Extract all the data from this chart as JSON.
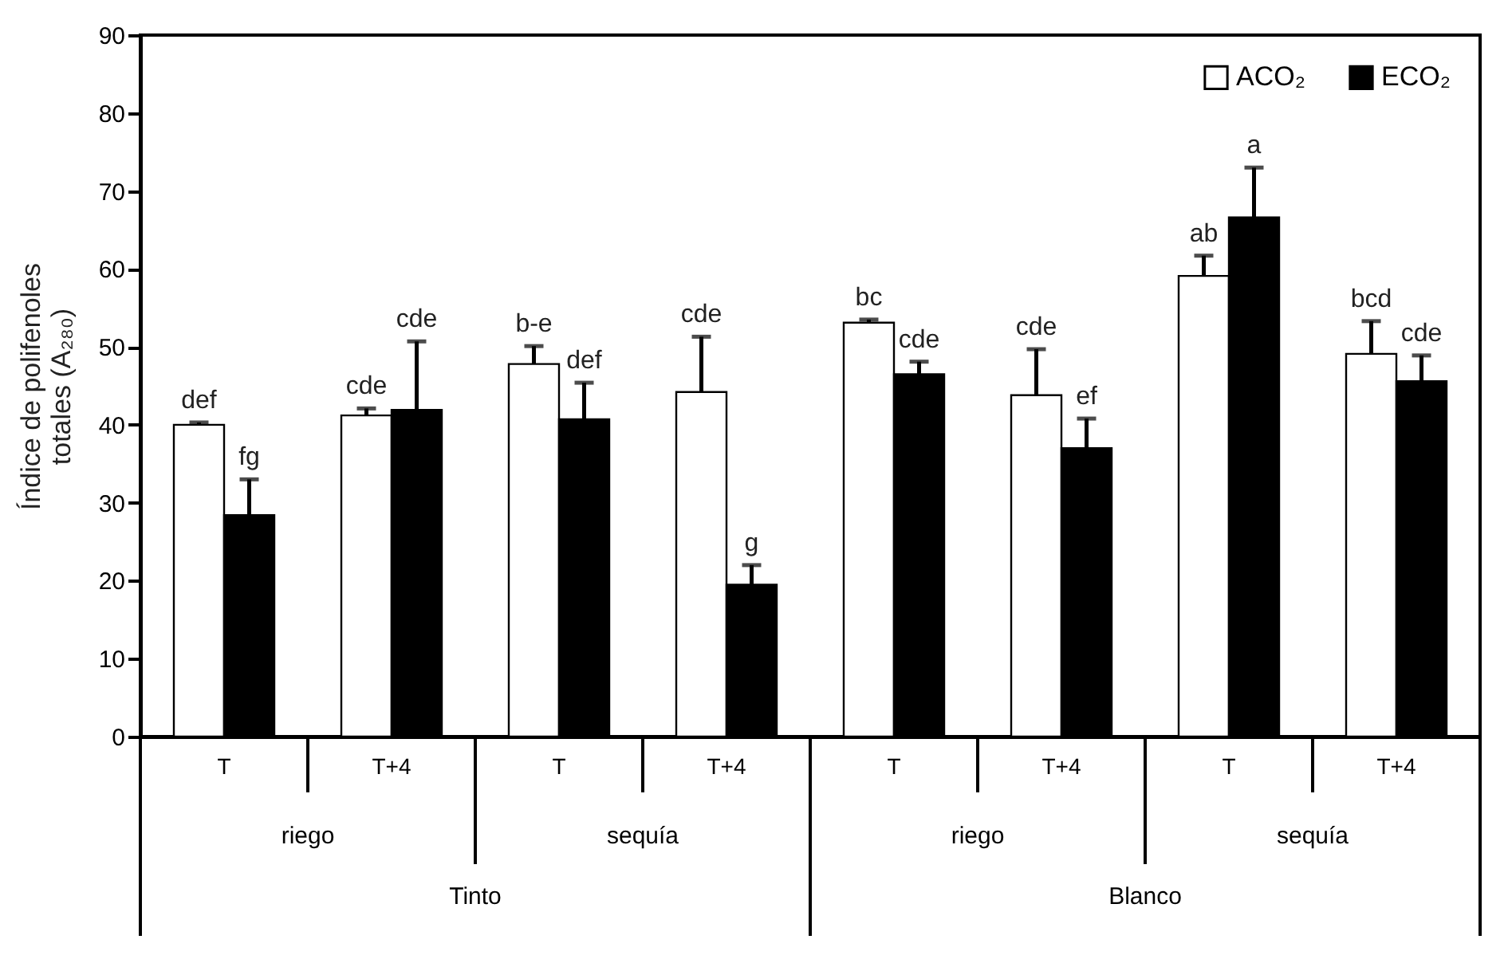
{
  "chart_data": {
    "type": "bar",
    "ylabel": "Índice de polifenoles totales (A₂₈₀)",
    "categories": [
      "T",
      "T+4",
      "T",
      "T+4",
      "T",
      "T+4",
      "T",
      "T+4"
    ],
    "series": [
      {
        "name": "ACO₂",
        "color": "#ffffff",
        "values": [
          40,
          41.2,
          47.8,
          44.2,
          53.1,
          43.8,
          59.1,
          49.1
        ],
        "errors": [
          [
            40,
            40.3
          ],
          [
            41.2,
            42.1
          ],
          [
            47.8,
            50.1
          ],
          [
            44.2,
            51.3
          ],
          [
            53.1,
            53.5
          ],
          [
            43.8,
            49.7
          ],
          [
            59.1,
            61.7
          ],
          [
            49.1,
            53.3
          ]
        ],
        "value_labels": [
          "def",
          "cde",
          "b-e",
          "cde",
          "bc",
          "cde",
          "ab",
          "bcd"
        ]
      },
      {
        "name": "ECO₂",
        "color": "#000000",
        "values": [
          28.4,
          41.9,
          40.7,
          19.5,
          46.5,
          37,
          66.6,
          45.6
        ],
        "errors": [
          [
            28.4,
            33
          ],
          [
            41.9,
            50.7
          ],
          [
            40.7,
            45.4
          ],
          [
            19.5,
            22
          ],
          [
            46.5,
            48.1
          ],
          [
            37,
            40.8
          ],
          [
            66.6,
            73
          ],
          [
            45.6,
            48.9
          ]
        ],
        "value_labels": [
          "fg",
          "cde",
          "def",
          "g",
          "cde",
          "ef",
          "a",
          "cde"
        ]
      }
    ],
    "annotations": [
      "riego",
      "sequía",
      "riego",
      "sequía",
      "Tinto",
      "Blanco"
    ],
    "ylim": [
      0,
      90
    ],
    "yticks": [
      0,
      10,
      20,
      30,
      40,
      50,
      60,
      70,
      80,
      90
    ],
    "legend": "top right",
    "grid": false
  }
}
